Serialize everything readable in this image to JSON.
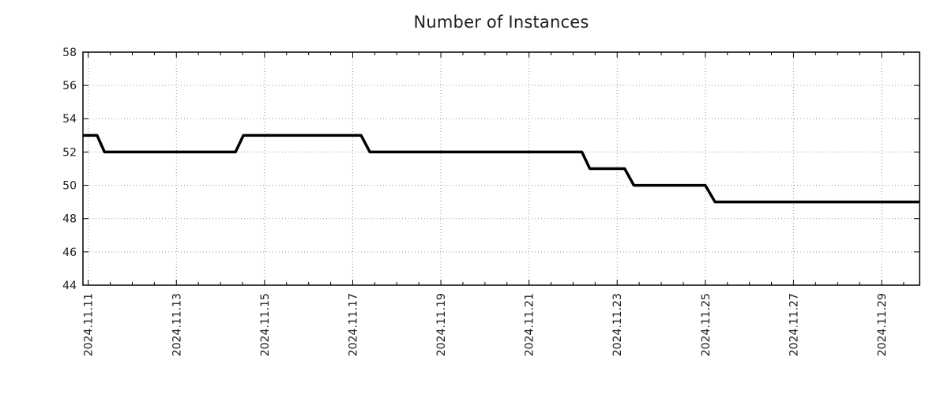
{
  "page": {
    "background": "#ffffff"
  },
  "chart_data": {
    "type": "line",
    "title": "Number of Instances",
    "legend": "none",
    "line_style": "stepped line with short ramps",
    "series": [
      {
        "name": "instances",
        "color": "#000000",
        "width": 3.5,
        "x_unit": "days_since_2024-11-11",
        "points": [
          [
            -0.12,
            53
          ],
          [
            0.2,
            53
          ],
          [
            0.37,
            52
          ],
          [
            3.34,
            52
          ],
          [
            3.52,
            53
          ],
          [
            6.19,
            53
          ],
          [
            6.39,
            52
          ],
          [
            11.2,
            52
          ],
          [
            11.38,
            51
          ],
          [
            12.17,
            51
          ],
          [
            12.38,
            50
          ],
          [
            14.0,
            50
          ],
          [
            14.22,
            49
          ],
          [
            18.86,
            49
          ]
        ]
      }
    ],
    "x": {
      "lim": [
        -0.12,
        18.86
      ],
      "unit": "days_since_2024-11-11",
      "minor_tick_step": 0.5,
      "major_ticks": [
        {
          "d": 0,
          "label": "2024.11.11"
        },
        {
          "d": 2,
          "label": "2024.11.13"
        },
        {
          "d": 4,
          "label": "2024.11.15"
        },
        {
          "d": 6,
          "label": "2024.11.17"
        },
        {
          "d": 8,
          "label": "2024.11.19"
        },
        {
          "d": 10,
          "label": "2024.11.21"
        },
        {
          "d": 12,
          "label": "2024.11.23"
        },
        {
          "d": 14,
          "label": "2024.11.25"
        },
        {
          "d": 16,
          "label": "2024.11.27"
        },
        {
          "d": 18,
          "label": "2024.11.29"
        }
      ]
    },
    "y": {
      "lim": [
        44,
        58
      ],
      "tick_step": 2,
      "ticks": [
        44,
        46,
        48,
        50,
        52,
        54,
        56,
        58
      ]
    },
    "grid": {
      "show": true,
      "color": "#969696",
      "style": "dotted"
    },
    "axis_color": "#000000",
    "text_color": "#1c1c1c"
  }
}
